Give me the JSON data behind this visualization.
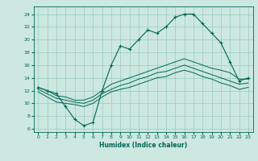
{
  "title": "",
  "xlabel": "Humidex (Indice chaleur)",
  "bg_color": "#cce8e0",
  "grid_color": "#99ccbb",
  "line_color": "#006655",
  "x_ticks": [
    0,
    1,
    2,
    3,
    4,
    5,
    6,
    7,
    8,
    9,
    10,
    11,
    12,
    13,
    14,
    15,
    16,
    17,
    18,
    19,
    20,
    21,
    22,
    23
  ],
  "y_ticks": [
    6,
    8,
    10,
    12,
    14,
    16,
    18,
    20,
    22,
    24
  ],
  "xlim": [
    -0.5,
    23.5
  ],
  "ylim": [
    5.5,
    25.2
  ],
  "main_line": [
    12.5,
    12.0,
    11.5,
    9.5,
    7.5,
    6.5,
    7.0,
    12.0,
    16.0,
    19.0,
    18.5,
    20.0,
    21.5,
    21.0,
    22.0,
    23.5,
    24.0,
    24.0,
    22.5,
    21.0,
    19.5,
    16.5,
    13.5,
    14.0
  ],
  "line2": [
    12.5,
    12.0,
    11.2,
    11.0,
    10.5,
    10.5,
    11.0,
    12.0,
    13.0,
    13.5,
    14.0,
    14.5,
    15.0,
    15.5,
    16.0,
    16.5,
    17.0,
    16.5,
    16.0,
    15.5,
    15.2,
    14.8,
    13.8,
    13.8
  ],
  "line3": [
    12.2,
    11.5,
    10.8,
    10.5,
    10.2,
    10.0,
    10.5,
    11.5,
    12.2,
    12.8,
    13.2,
    13.8,
    14.2,
    14.8,
    15.0,
    15.5,
    16.0,
    15.5,
    15.0,
    14.5,
    14.0,
    13.5,
    13.0,
    13.2
  ],
  "line4": [
    11.8,
    11.0,
    10.2,
    10.0,
    9.8,
    9.5,
    10.0,
    11.0,
    11.8,
    12.2,
    12.5,
    13.0,
    13.5,
    14.0,
    14.2,
    14.8,
    15.2,
    14.8,
    14.2,
    13.8,
    13.2,
    12.8,
    12.2,
    12.5
  ]
}
